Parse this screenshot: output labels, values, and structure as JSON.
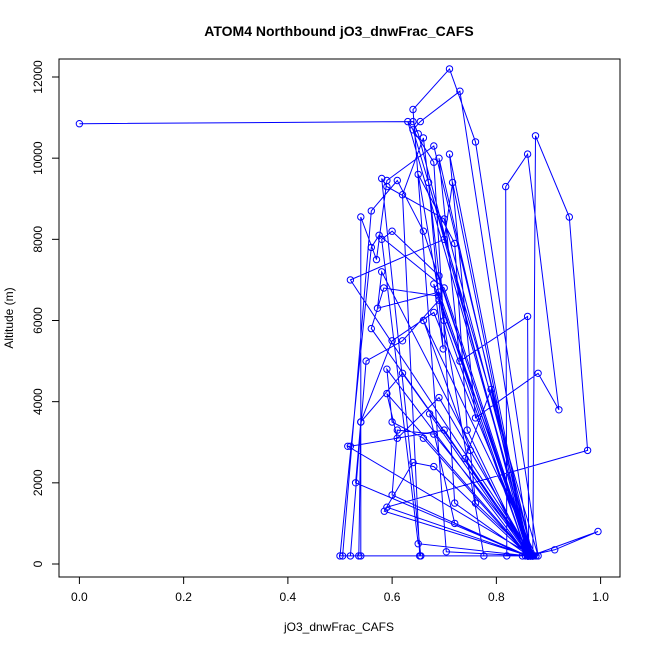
{
  "chart_data": {
    "type": "line",
    "title": "ATOM4 Northbound jO3_dnwFrac_CAFS",
    "xlabel": "jO3_dnwFrac_CAFS",
    "ylabel": "Altitude (m)",
    "xlim": [
      0,
      1
    ],
    "ylim": [
      0,
      12000
    ],
    "x_ticks": [
      "0.0",
      "0.2",
      "0.4",
      "0.6",
      "0.8",
      "1.0"
    ],
    "y_ticks": [
      "0",
      "2000",
      "4000",
      "6000",
      "8000",
      "10000",
      "12000"
    ],
    "grid": false,
    "legend": "none",
    "series": [
      {
        "color": "#0000ff",
        "markers": "open-circle",
        "points": [
          [
            0.0,
            10850
          ],
          [
            0.64,
            10900
          ],
          [
            0.65,
            10600
          ],
          [
            0.862,
            200
          ],
          [
            0.505,
            200
          ],
          [
            0.56,
            8700
          ],
          [
            0.61,
            9450
          ],
          [
            0.66,
            8200
          ],
          [
            0.865,
            200
          ],
          [
            0.54,
            200
          ],
          [
            0.54,
            8550
          ],
          [
            0.57,
            7500
          ],
          [
            0.59,
            9450
          ],
          [
            0.68,
            10300
          ],
          [
            0.87,
            200
          ],
          [
            0.655,
            200
          ],
          [
            0.58,
            9500
          ],
          [
            0.59,
            9300
          ],
          [
            0.7,
            8500
          ],
          [
            0.87,
            200
          ],
          [
            0.5,
            200
          ],
          [
            0.56,
            7800
          ],
          [
            0.575,
            8100
          ],
          [
            0.7,
            6800
          ],
          [
            0.866,
            200
          ],
          [
            0.87,
            200
          ],
          [
            0.52,
            7000
          ],
          [
            0.7,
            8000
          ],
          [
            0.716,
            9400
          ],
          [
            0.86,
            200
          ],
          [
            0.65,
            500
          ],
          [
            0.58,
            8000
          ],
          [
            0.6,
            8200
          ],
          [
            0.69,
            7100
          ],
          [
            0.862,
            200
          ],
          [
            0.86,
            200
          ],
          [
            0.58,
            7200
          ],
          [
            0.572,
            6300
          ],
          [
            0.69,
            6700
          ],
          [
            0.865,
            200
          ],
          [
            0.87,
            200
          ],
          [
            0.56,
            5800
          ],
          [
            0.584,
            6800
          ],
          [
            0.69,
            6600
          ],
          [
            0.86,
            200
          ],
          [
            0.704,
            300
          ],
          [
            0.64,
            11200
          ],
          [
            0.71,
            12200
          ],
          [
            0.76,
            10400
          ],
          [
            0.88,
            200
          ],
          [
            0.64,
            10700
          ],
          [
            0.654,
            10900
          ],
          [
            0.73,
            11650
          ],
          [
            0.866,
            200
          ],
          [
            0.52,
            200
          ],
          [
            0.55,
            5000
          ],
          [
            0.62,
            5500
          ],
          [
            0.69,
            6500
          ],
          [
            0.872,
            200
          ],
          [
            0.653,
            200
          ],
          [
            0.62,
            9100
          ],
          [
            0.66,
            10500
          ],
          [
            0.7,
            6000
          ],
          [
            0.86,
            200
          ],
          [
            0.86,
            200
          ],
          [
            0.59,
            4800
          ],
          [
            0.6,
            3500
          ],
          [
            0.66,
            3100
          ],
          [
            0.86,
            200
          ],
          [
            0.536,
            200
          ],
          [
            0.54,
            3500
          ],
          [
            0.6,
            5500
          ],
          [
            0.68,
            6200
          ],
          [
            0.87,
            200
          ],
          [
            0.86,
            200
          ],
          [
            0.53,
            2000
          ],
          [
            0.54,
            3500
          ],
          [
            0.62,
            4700
          ],
          [
            0.87,
            200
          ],
          [
            0.862,
            200
          ],
          [
            0.59,
            4200
          ],
          [
            0.61,
            3100
          ],
          [
            0.69,
            4100
          ],
          [
            0.868,
            200
          ],
          [
            0.87,
            200
          ],
          [
            0.515,
            2900
          ],
          [
            0.52,
            2900
          ],
          [
            0.7,
            3300
          ],
          [
            0.864,
            200
          ],
          [
            0.86,
            200
          ],
          [
            0.6,
            1700
          ],
          [
            0.61,
            3300
          ],
          [
            0.68,
            3200
          ],
          [
            0.87,
            200
          ],
          [
            0.862,
            200
          ],
          [
            0.585,
            1300
          ],
          [
            0.64,
            2500
          ],
          [
            0.68,
            2400
          ],
          [
            0.862,
            200
          ],
          [
            0.876,
            200
          ],
          [
            0.66,
            6000
          ],
          [
            0.75,
            2800
          ],
          [
            0.76,
            1500
          ],
          [
            0.866,
            200
          ],
          [
            0.776,
            200
          ],
          [
            0.65,
            9600
          ],
          [
            0.72,
            7900
          ],
          [
            0.744,
            3300
          ],
          [
            0.86,
            200
          ],
          [
            0.862,
            200
          ],
          [
            0.71,
            10100
          ],
          [
            0.76,
            3600
          ],
          [
            0.88,
            4700
          ],
          [
            0.92,
            3800
          ],
          [
            0.86,
            10100
          ],
          [
            0.818,
            9300
          ],
          [
            0.82,
            200
          ],
          [
            0.862,
            200
          ],
          [
            0.87,
            200
          ],
          [
            0.875,
            10550
          ],
          [
            0.94,
            8550
          ],
          [
            0.975,
            2800
          ],
          [
            0.59,
            1400
          ],
          [
            0.862,
            200
          ],
          [
            0.86,
            6100
          ],
          [
            0.73,
            5000
          ],
          [
            0.69,
            10000
          ],
          [
            0.865,
            200
          ],
          [
            0.866,
            200
          ],
          [
            0.995,
            800
          ],
          [
            0.912,
            350
          ],
          [
            0.86,
            200
          ],
          [
            0.85,
            200
          ],
          [
            0.87,
            200
          ],
          [
            0.68,
            6900
          ],
          [
            0.698,
            5300
          ],
          [
            0.67,
            9400
          ],
          [
            0.866,
            200
          ],
          [
            0.862,
            200
          ],
          [
            0.672,
            3700
          ],
          [
            0.72,
            1000
          ],
          [
            0.856,
            200
          ],
          [
            0.86,
            200
          ],
          [
            0.79,
            4300
          ],
          [
            0.74,
            2600
          ],
          [
            0.866,
            200
          ],
          [
            0.868,
            200
          ],
          [
            0.63,
            10900
          ],
          [
            0.68,
            9900
          ],
          [
            0.72,
            1500
          ],
          [
            0.862,
            200
          ]
        ]
      }
    ]
  }
}
